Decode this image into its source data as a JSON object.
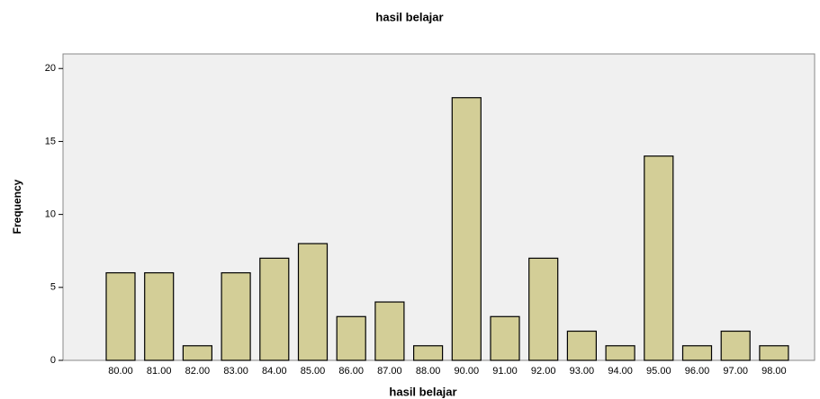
{
  "chart_data": {
    "type": "bar",
    "title": "hasil belajar",
    "x_label": "hasil belajar",
    "y_label": "Frequency",
    "categories": [
      "80.00",
      "81.00",
      "82.00",
      "83.00",
      "84.00",
      "85.00",
      "86.00",
      "87.00",
      "88.00",
      "90.00",
      "91.00",
      "92.00",
      "93.00",
      "94.00",
      "95.00",
      "96.00",
      "97.00",
      "98.00"
    ],
    "values": [
      6,
      6,
      1,
      6,
      7,
      8,
      3,
      4,
      1,
      18,
      3,
      7,
      2,
      1,
      14,
      1,
      2,
      1
    ],
    "color": "#d3ce97",
    "ylim": [
      0,
      21
    ],
    "yticks": [
      0,
      5,
      10,
      15,
      20
    ],
    "grid": false
  }
}
